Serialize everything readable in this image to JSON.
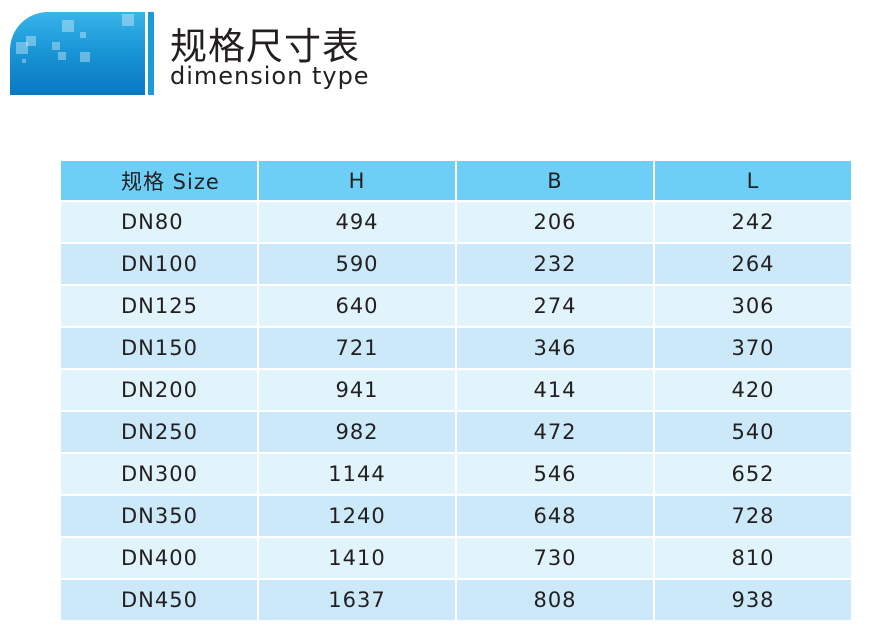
{
  "header": {
    "title": "规格尺寸表",
    "subtitle": "dimension type"
  },
  "colors": {
    "header_bg": "#6dcff6",
    "row_light": "#e1f3fb",
    "row_dark": "#cbe9f8",
    "logo_blue": "#1c9ad9"
  },
  "table": {
    "columns": [
      "规格 Size",
      "H",
      "B",
      "L"
    ],
    "rows": [
      [
        "DN80",
        "494",
        "206",
        "242"
      ],
      [
        "DN100",
        "590",
        "232",
        "264"
      ],
      [
        "DN125",
        "640",
        "274",
        "306"
      ],
      [
        "DN150",
        "721",
        "346",
        "370"
      ],
      [
        "DN200",
        "941",
        "414",
        "420"
      ],
      [
        "DN250",
        "982",
        "472",
        "540"
      ],
      [
        "DN300",
        "1144",
        "546",
        "652"
      ],
      [
        "DN350",
        "1240",
        "648",
        "728"
      ],
      [
        "DN400",
        "1410",
        "730",
        "810"
      ],
      [
        "DN450",
        "1637",
        "808",
        "938"
      ]
    ]
  }
}
